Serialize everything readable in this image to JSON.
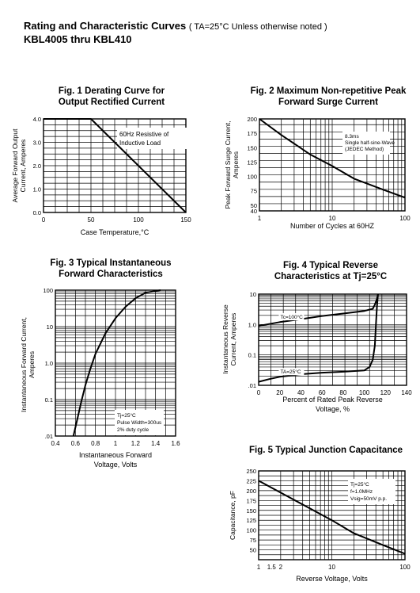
{
  "header": {
    "title": "Rating and Characteristic Curves",
    "condition": "( TA=25°C Unless otherwise noted )",
    "part_range": "KBL4005 thru KBL410"
  },
  "chart_data": [
    {
      "id": "fig1",
      "type": "line",
      "title": "Fig. 1 Derating Curve for",
      "subtitle": "Output Rectified Current",
      "xlabel": "Case Temperature,°C",
      "ylabel": [
        "Average Forward Output",
        "Current, Amperes"
      ],
      "xscale": "linear",
      "yscale": "linear",
      "xlim": [
        0,
        150
      ],
      "ylim": [
        0,
        4.0
      ],
      "xticks": [
        0,
        50,
        100,
        150
      ],
      "yticks": [
        0,
        1.0,
        2.0,
        3.0,
        4.0
      ],
      "grid": true,
      "annotations": [
        "60Hz Resistive of",
        "Inductive Load"
      ],
      "series": [
        {
          "x": [
            0,
            50,
            150
          ],
          "y": [
            4.0,
            4.0,
            0
          ]
        }
      ]
    },
    {
      "id": "fig2",
      "type": "line",
      "title": "Fig. 2 Maximum Non-repetitive Peak",
      "subtitle": "Forward Surge Current",
      "xlabel": "Number of Cycles at 60HZ",
      "ylabel": [
        "Peak Forward Surge Current,",
        "Amperes"
      ],
      "xscale": "log",
      "yscale": "linear",
      "xlim": [
        1,
        100
      ],
      "ylim": [
        40,
        200
      ],
      "xticks": [
        1,
        10,
        100
      ],
      "yticks": [
        40,
        50,
        75,
        100,
        125,
        150,
        175,
        200
      ],
      "grid": true,
      "annotations": [
        "8.3ms",
        "Single half-sine-Wave",
        "(JEDEC Method)"
      ],
      "series": [
        {
          "x": [
            1,
            2,
            5,
            10,
            20,
            50,
            100
          ],
          "y": [
            200,
            172,
            138,
            118,
            96,
            77,
            63
          ]
        }
      ]
    },
    {
      "id": "fig3",
      "type": "line",
      "title": "Fig. 3 Typical Instantaneous",
      "subtitle": "Forward Characteristics",
      "xlabel": [
        "Instantaneous Forward",
        "Voltage, Volts"
      ],
      "ylabel": [
        "Instantaneous Forward Current,",
        "Amperes"
      ],
      "xscale": "linear",
      "yscale": "log",
      "xlim": [
        0.4,
        1.6
      ],
      "ylim": [
        0.01,
        100
      ],
      "xticks": [
        0.4,
        0.6,
        0.8,
        1.0,
        1.2,
        1.4,
        1.6
      ],
      "yticks": [
        0.01,
        0.1,
        1.0,
        10,
        100
      ],
      "ytick_labels": [
        ".01",
        "0.1",
        "1.0",
        "10",
        "100"
      ],
      "grid": true,
      "annotations": [
        "Tj=25°C",
        "Pulse Width=300us",
        "2% duty cycle"
      ],
      "series": [
        {
          "x": [
            0.58,
            0.62,
            0.66,
            0.7,
            0.75,
            0.8,
            0.9,
            1.0,
            1.1,
            1.2,
            1.3,
            1.45
          ],
          "y": [
            0.01,
            0.03,
            0.09,
            0.25,
            0.7,
            1.8,
            6.5,
            17,
            35,
            60,
            85,
            100
          ]
        }
      ]
    },
    {
      "id": "fig4",
      "type": "line",
      "title": "Fig. 4 Typical Reverse",
      "subtitle": "Characteristics at Tj=25°C",
      "xlabel": [
        "Percent of Rated Peak Reverse",
        "Voltage, %"
      ],
      "ylabel": [
        "Instantaneous Reverse",
        "Current, Amperes"
      ],
      "xscale": "linear",
      "yscale": "log",
      "xlim": [
        0,
        140
      ],
      "ylim": [
        0.01,
        10
      ],
      "xticks": [
        0,
        20,
        40,
        60,
        80,
        100,
        120,
        140
      ],
      "yticks": [
        0.01,
        0.1,
        1.0,
        10
      ],
      "ytick_labels": [
        ".01",
        "0.1",
        "1.0",
        "10"
      ],
      "grid": true,
      "series": [
        {
          "label": "Tc=100°C",
          "x": [
            0,
            20,
            40,
            60,
            80,
            100,
            108,
            110,
            112,
            113
          ],
          "y": [
            0.9,
            1.2,
            1.5,
            1.9,
            2.3,
            2.8,
            3.3,
            4.5,
            7,
            10
          ]
        },
        {
          "label": "TA=25°C",
          "x": [
            0,
            10,
            20,
            40,
            60,
            80,
            100,
            105,
            108,
            110,
            111,
            112,
            113
          ],
          "y": [
            0.013,
            0.016,
            0.019,
            0.023,
            0.026,
            0.028,
            0.031,
            0.04,
            0.07,
            0.2,
            1.0,
            4.0,
            10
          ]
        }
      ]
    },
    {
      "id": "fig5",
      "type": "line",
      "title": "Fig. 5 Typical Junction Capacitance",
      "subtitle": "",
      "xlabel": "Reverse Voltage, Volts",
      "ylabel": [
        "Capacitance, pF"
      ],
      "xscale": "log",
      "yscale": "linear",
      "xlim": [
        1,
        100
      ],
      "ylim": [
        25,
        250
      ],
      "xticks": [
        1,
        1.5,
        2,
        10,
        100
      ],
      "xtick_labels": [
        "1",
        "1.5",
        "2",
        "10",
        "100"
      ],
      "yticks": [
        50,
        75,
        100,
        125,
        150,
        175,
        200,
        225,
        250
      ],
      "grid": true,
      "annotations": [
        "Tj=25°C",
        "f=1.0MHz",
        "Vsig=50mV p.p."
      ],
      "series": [
        {
          "x": [
            1,
            2,
            5,
            10,
            20,
            50,
            100
          ],
          "y": [
            225,
            195,
            155,
            125,
            92,
            62,
            40
          ]
        }
      ]
    }
  ]
}
